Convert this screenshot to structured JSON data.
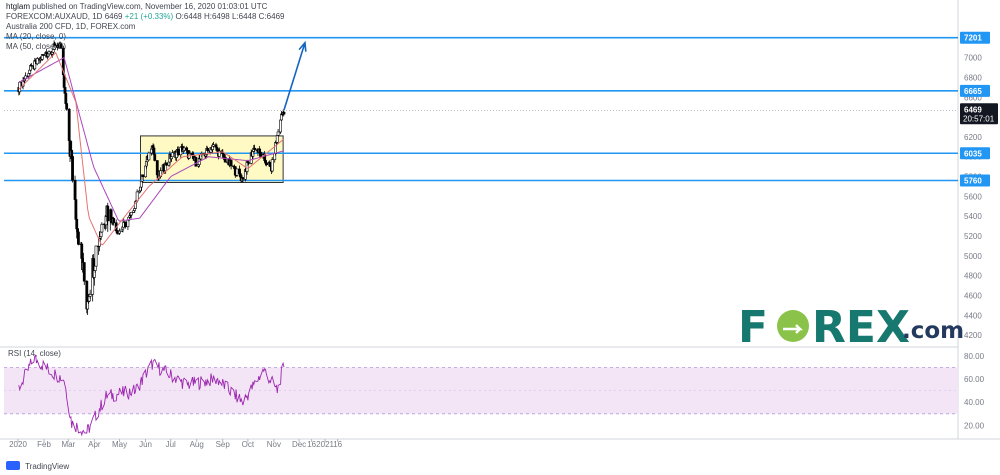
{
  "header": {
    "publisher": "htglam",
    "published_text": "published on TradingView.com, November 16, 2020 01:03:01 UTC",
    "symbol": "FOREXCOM:AUXAUD, 1D",
    "last": "6469",
    "change": "+21 (+0.33%)",
    "o": "O:6448",
    "h": "H:6498",
    "l": "L:6448",
    "c": "C:6469"
  },
  "legend": {
    "title": "Australia 200 CFD, 1D, FOREX.com",
    "ma20": "MA (20, close, 0)",
    "ma50": "MA (50, close, 0)",
    "rsi": "RSI (14, close)"
  },
  "footer": {
    "brand": "TradingView"
  },
  "watermark": {
    "text_a": "F",
    "text_b": "REX",
    "text_c": ".com"
  },
  "colors": {
    "candle": "#000000",
    "ma20": "#e57373",
    "ma50": "#ab47bc",
    "level_line": "#2196f3",
    "range_box_fill": "#fff9c4",
    "range_box_stroke": "#333333",
    "rsi_line": "#9c27b0",
    "rsi_band": "#f3e5f5",
    "price_tag": "#131722",
    "level_tag": "#2196f3",
    "arrow": "#1565c0",
    "brand_teal": "#16786f",
    "brand_navy": "#233a5e",
    "brand_green": "#8bc34a"
  },
  "chart_data": {
    "type": "candlestick",
    "price_axis": {
      "ticks": [
        4200,
        4400,
        4600,
        4800,
        5000,
        5200,
        5400,
        5600,
        5800,
        6000,
        6200,
        6400,
        6600,
        6800,
        7000,
        7200
      ],
      "range": [
        4100,
        7400
      ]
    },
    "rsi_axis": {
      "ticks": [
        20,
        40,
        60,
        80
      ],
      "labels": [
        "20.00",
        "40.00",
        "60.00",
        "80.00"
      ],
      "range": [
        10,
        85
      ]
    },
    "time_axis": {
      "labels": [
        "2020",
        "Feb",
        "Mar",
        "Apr",
        "May",
        "Jun",
        "Jul",
        "Aug",
        "Sep",
        "Oct",
        "Nov",
        "Dec",
        "16",
        "2021",
        "16"
      ]
    },
    "levels": [
      {
        "value": 7201,
        "label": "7201"
      },
      {
        "value": 6665,
        "label": "6665"
      },
      {
        "value": 6035,
        "label": "6035"
      },
      {
        "value": 5760,
        "label": "5760"
      }
    ],
    "current_price": {
      "value": 6469,
      "label": "6469",
      "countdown": "20:57:01"
    },
    "range_box": {
      "start": "2020-05-26",
      "end": "2020-11-12",
      "top": 6210,
      "bottom": 5740
    },
    "forecast_arrow": {
      "from_date": "2020-11-13",
      "from_price": 6470,
      "to_date": "2020-12-08",
      "to_price": 7150
    },
    "rsi_band": [
      30,
      70
    ],
    "ohlc_summary": [
      {
        "date": "2020-01-02",
        "close": 6700
      },
      {
        "date": "2020-01-15",
        "close": 6870
      },
      {
        "date": "2020-01-31",
        "close": 7017
      },
      {
        "date": "2020-02-20",
        "close": 7140
      },
      {
        "date": "2020-02-28",
        "close": 6440
      },
      {
        "date": "2020-03-12",
        "close": 5300
      },
      {
        "date": "2020-03-23",
        "close": 4546
      },
      {
        "date": "2020-04-03",
        "close": 5070
      },
      {
        "date": "2020-04-15",
        "close": 5490
      },
      {
        "date": "2020-04-30",
        "close": 5240
      },
      {
        "date": "2020-05-15",
        "close": 5400
      },
      {
        "date": "2020-06-01",
        "close": 5900
      },
      {
        "date": "2020-06-09",
        "close": 6150
      },
      {
        "date": "2020-06-15",
        "close": 5780
      },
      {
        "date": "2020-07-01",
        "close": 6000
      },
      {
        "date": "2020-07-15",
        "close": 6080
      },
      {
        "date": "2020-08-01",
        "close": 5940
      },
      {
        "date": "2020-08-20",
        "close": 6110
      },
      {
        "date": "2020-09-10",
        "close": 5920
      },
      {
        "date": "2020-09-24",
        "close": 5780
      },
      {
        "date": "2020-10-09",
        "close": 6100
      },
      {
        "date": "2020-10-29",
        "close": 5880
      },
      {
        "date": "2020-11-09",
        "close": 6390
      },
      {
        "date": "2020-11-13",
        "close": 6469
      }
    ],
    "ma20_summary": [
      {
        "date": "2020-01-02",
        "value": 6680
      },
      {
        "date": "2020-02-15",
        "value": 7050
      },
      {
        "date": "2020-03-10",
        "value": 6550
      },
      {
        "date": "2020-03-25",
        "value": 5400
      },
      {
        "date": "2020-04-10",
        "value": 5100
      },
      {
        "date": "2020-05-01",
        "value": 5330
      },
      {
        "date": "2020-06-05",
        "value": 5700
      },
      {
        "date": "2020-07-15",
        "value": 6000
      },
      {
        "date": "2020-09-01",
        "value": 6050
      },
      {
        "date": "2020-10-01",
        "value": 5880
      },
      {
        "date": "2020-11-13",
        "value": 6180
      }
    ],
    "ma50_summary": [
      {
        "date": "2020-01-02",
        "value": 6750
      },
      {
        "date": "2020-02-25",
        "value": 7000
      },
      {
        "date": "2020-03-31",
        "value": 5900
      },
      {
        "date": "2020-04-30",
        "value": 5350
      },
      {
        "date": "2020-05-25",
        "value": 5380
      },
      {
        "date": "2020-07-01",
        "value": 5800
      },
      {
        "date": "2020-08-15",
        "value": 6000
      },
      {
        "date": "2020-10-01",
        "value": 5960
      },
      {
        "date": "2020-11-13",
        "value": 6060
      }
    ],
    "rsi_summary": [
      {
        "date": "2020-01-02",
        "value": 52
      },
      {
        "date": "2020-01-20",
        "value": 78
      },
      {
        "date": "2020-02-10",
        "value": 66
      },
      {
        "date": "2020-02-25",
        "value": 60
      },
      {
        "date": "2020-03-05",
        "value": 22
      },
      {
        "date": "2020-03-23",
        "value": 14
      },
      {
        "date": "2020-04-15",
        "value": 45
      },
      {
        "date": "2020-05-20",
        "value": 50
      },
      {
        "date": "2020-06-09",
        "value": 73
      },
      {
        "date": "2020-07-20",
        "value": 55
      },
      {
        "date": "2020-08-25",
        "value": 60
      },
      {
        "date": "2020-09-25",
        "value": 40
      },
      {
        "date": "2020-10-20",
        "value": 68
      },
      {
        "date": "2020-11-05",
        "value": 50
      },
      {
        "date": "2020-11-13",
        "value": 72
      }
    ]
  }
}
